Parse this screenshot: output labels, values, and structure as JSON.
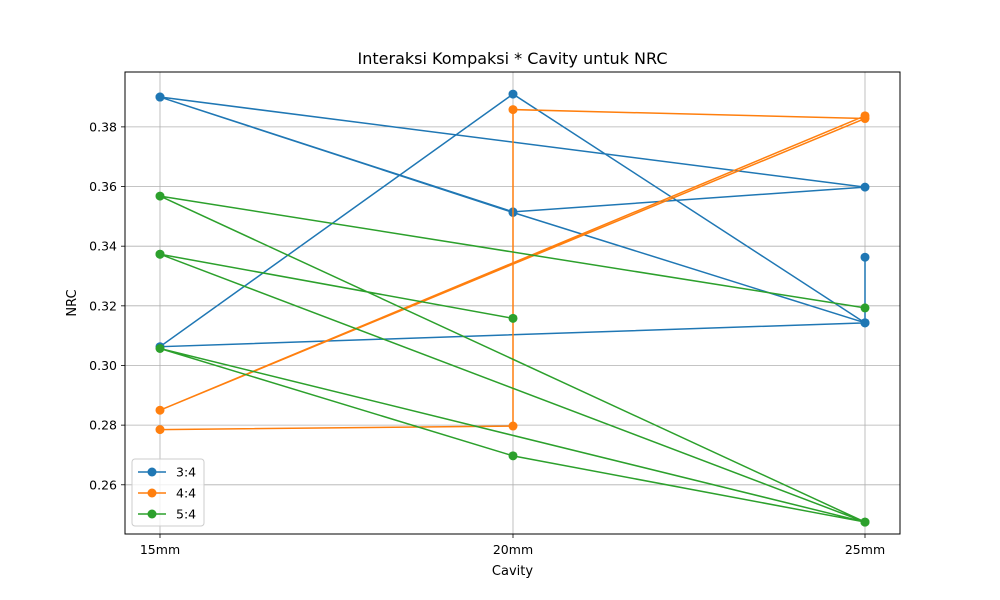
{
  "chart_data": {
    "type": "line",
    "title": "Interaksi Kompaksi * Cavity untuk NRC",
    "xlabel": "Cavity",
    "ylabel": "NRC",
    "categories": [
      "15mm",
      "20mm",
      "25mm"
    ],
    "ylim": [
      0.2435,
      0.3984
    ],
    "yticks": [
      0.26,
      0.28,
      0.3,
      0.32,
      0.34,
      0.36,
      0.38
    ],
    "ytick_labels": [
      "0.26",
      "0.28",
      "0.30",
      "0.32",
      "0.34",
      "0.36",
      "0.38"
    ],
    "grid": true,
    "legend_position": "lower-left",
    "series": [
      {
        "name": "3:4",
        "color": "#1f77b4",
        "points": [
          {
            "x": "15mm",
            "y": 0.39
          },
          {
            "x": "20mm",
            "y": 0.3515
          },
          {
            "x": "25mm",
            "y": 0.3598
          },
          {
            "x": "15mm",
            "y": 0.39
          },
          {
            "x": "20mm",
            "y": 0.3513
          },
          {
            "x": "25mm",
            "y": 0.3143
          },
          {
            "x": "15mm",
            "y": 0.3063
          },
          {
            "x": "20mm",
            "y": 0.391
          },
          {
            "x": "25mm",
            "y": 0.3143
          },
          {
            "x": "25mm",
            "y": 0.3363
          }
        ]
      },
      {
        "name": "4:4",
        "color": "#ff7f0e",
        "points": [
          {
            "x": "15mm",
            "y": 0.2785
          },
          {
            "x": "20mm",
            "y": 0.2797
          },
          {
            "x": "20mm",
            "y": 0.3858
          },
          {
            "x": "25mm",
            "y": 0.3828
          },
          {
            "x": "15mm",
            "y": 0.285
          },
          {
            "x": "25mm",
            "y": 0.3837
          }
        ]
      },
      {
        "name": "5:4",
        "color": "#2ca02c",
        "points": [
          {
            "x": "15mm",
            "y": 0.3373
          },
          {
            "x": "20mm",
            "y": 0.3158
          },
          {
            "x": "15mm",
            "y": 0.3373
          },
          {
            "x": "25mm",
            "y": 0.2475
          },
          {
            "x": "15mm",
            "y": 0.3057
          },
          {
            "x": "20mm",
            "y": 0.2697
          },
          {
            "x": "25mm",
            "y": 0.2475
          },
          {
            "x": "15mm",
            "y": 0.3568
          },
          {
            "x": "25mm",
            "y": 0.3193
          }
        ]
      }
    ]
  }
}
